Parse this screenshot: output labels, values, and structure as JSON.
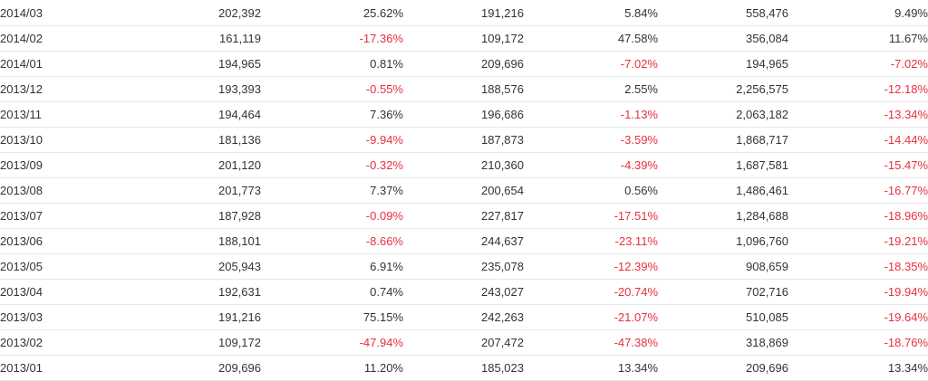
{
  "colors": {
    "text": "#333333",
    "negative": "#e8303f",
    "row_border": "#e6e6e6"
  },
  "rows": [
    [
      "2014/03",
      "202,392",
      "25.62%",
      "191,216",
      "5.84%",
      "558,476",
      "9.49%"
    ],
    [
      "2014/02",
      "161,119",
      "-17.36%",
      "109,172",
      "47.58%",
      "356,084",
      "11.67%"
    ],
    [
      "2014/01",
      "194,965",
      "0.81%",
      "209,696",
      "-7.02%",
      "194,965",
      "-7.02%"
    ],
    [
      "2013/12",
      "193,393",
      "-0.55%",
      "188,576",
      "2.55%",
      "2,256,575",
      "-12.18%"
    ],
    [
      "2013/11",
      "194,464",
      "7.36%",
      "196,686",
      "-1.13%",
      "2,063,182",
      "-13.34%"
    ],
    [
      "2013/10",
      "181,136",
      "-9.94%",
      "187,873",
      "-3.59%",
      "1,868,717",
      "-14.44%"
    ],
    [
      "2013/09",
      "201,120",
      "-0.32%",
      "210,360",
      "-4.39%",
      "1,687,581",
      "-15.47%"
    ],
    [
      "2013/08",
      "201,773",
      "7.37%",
      "200,654",
      "0.56%",
      "1,486,461",
      "-16.77%"
    ],
    [
      "2013/07",
      "187,928",
      "-0.09%",
      "227,817",
      "-17.51%",
      "1,284,688",
      "-18.96%"
    ],
    [
      "2013/06",
      "188,101",
      "-8.66%",
      "244,637",
      "-23.11%",
      "1,096,760",
      "-19.21%"
    ],
    [
      "2013/05",
      "205,943",
      "6.91%",
      "235,078",
      "-12.39%",
      "908,659",
      "-18.35%"
    ],
    [
      "2013/04",
      "192,631",
      "0.74%",
      "243,027",
      "-20.74%",
      "702,716",
      "-19.94%"
    ],
    [
      "2013/03",
      "191,216",
      "75.15%",
      "242,263",
      "-21.07%",
      "510,085",
      "-19.64%"
    ],
    [
      "2013/02",
      "109,172",
      "-47.94%",
      "207,472",
      "-47.38%",
      "318,869",
      "-18.76%"
    ],
    [
      "2013/01",
      "209,696",
      "11.20%",
      "185,023",
      "13.34%",
      "209,696",
      "13.34%"
    ]
  ]
}
